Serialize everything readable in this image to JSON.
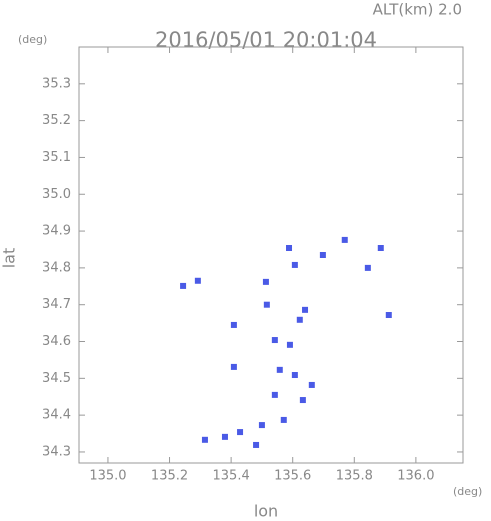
{
  "chart_data": {
    "type": "scatter",
    "title": "2016/05/01 20:01:04",
    "subtitle": "ALT(km) 2.0",
    "x_label": "lon",
    "y_label": "lat",
    "x_unit": "(deg)",
    "y_unit": "(deg)",
    "x": [
      135.244,
      135.292,
      135.513,
      135.588,
      135.607,
      135.698,
      135.769,
      135.844,
      135.886,
      135.912,
      135.409,
      135.409,
      135.516,
      135.542,
      135.558,
      135.591,
      135.623,
      135.64,
      135.633,
      135.662,
      135.571,
      135.5,
      135.429,
      135.38,
      135.315,
      135.481,
      135.542,
      135.607
    ],
    "values": [
      34.751,
      34.765,
      34.762,
      34.854,
      34.808,
      34.835,
      34.876,
      34.8,
      34.854,
      34.672,
      34.645,
      34.531,
      34.7,
      34.604,
      34.523,
      34.591,
      34.659,
      34.686,
      34.441,
      34.482,
      34.387,
      34.373,
      34.354,
      34.341,
      34.333,
      34.319,
      34.455,
      34.509
    ],
    "color": "#4a5ae6",
    "xlim": [
      134.906,
      136.153
    ],
    "ylim": [
      34.27,
      35.4
    ],
    "xticks": [
      {
        "value": 135,
        "label": "135.0"
      },
      135.2,
      135.4,
      135.6,
      135.8,
      {
        "value": 136,
        "label": "136.0"
      }
    ],
    "yticks": [
      34.3,
      34.4,
      34.5,
      34.6,
      34.7,
      34.8,
      34.9,
      {
        "value": 35,
        "label": "35.0"
      },
      35.1,
      35.2,
      35.3
    ]
  }
}
